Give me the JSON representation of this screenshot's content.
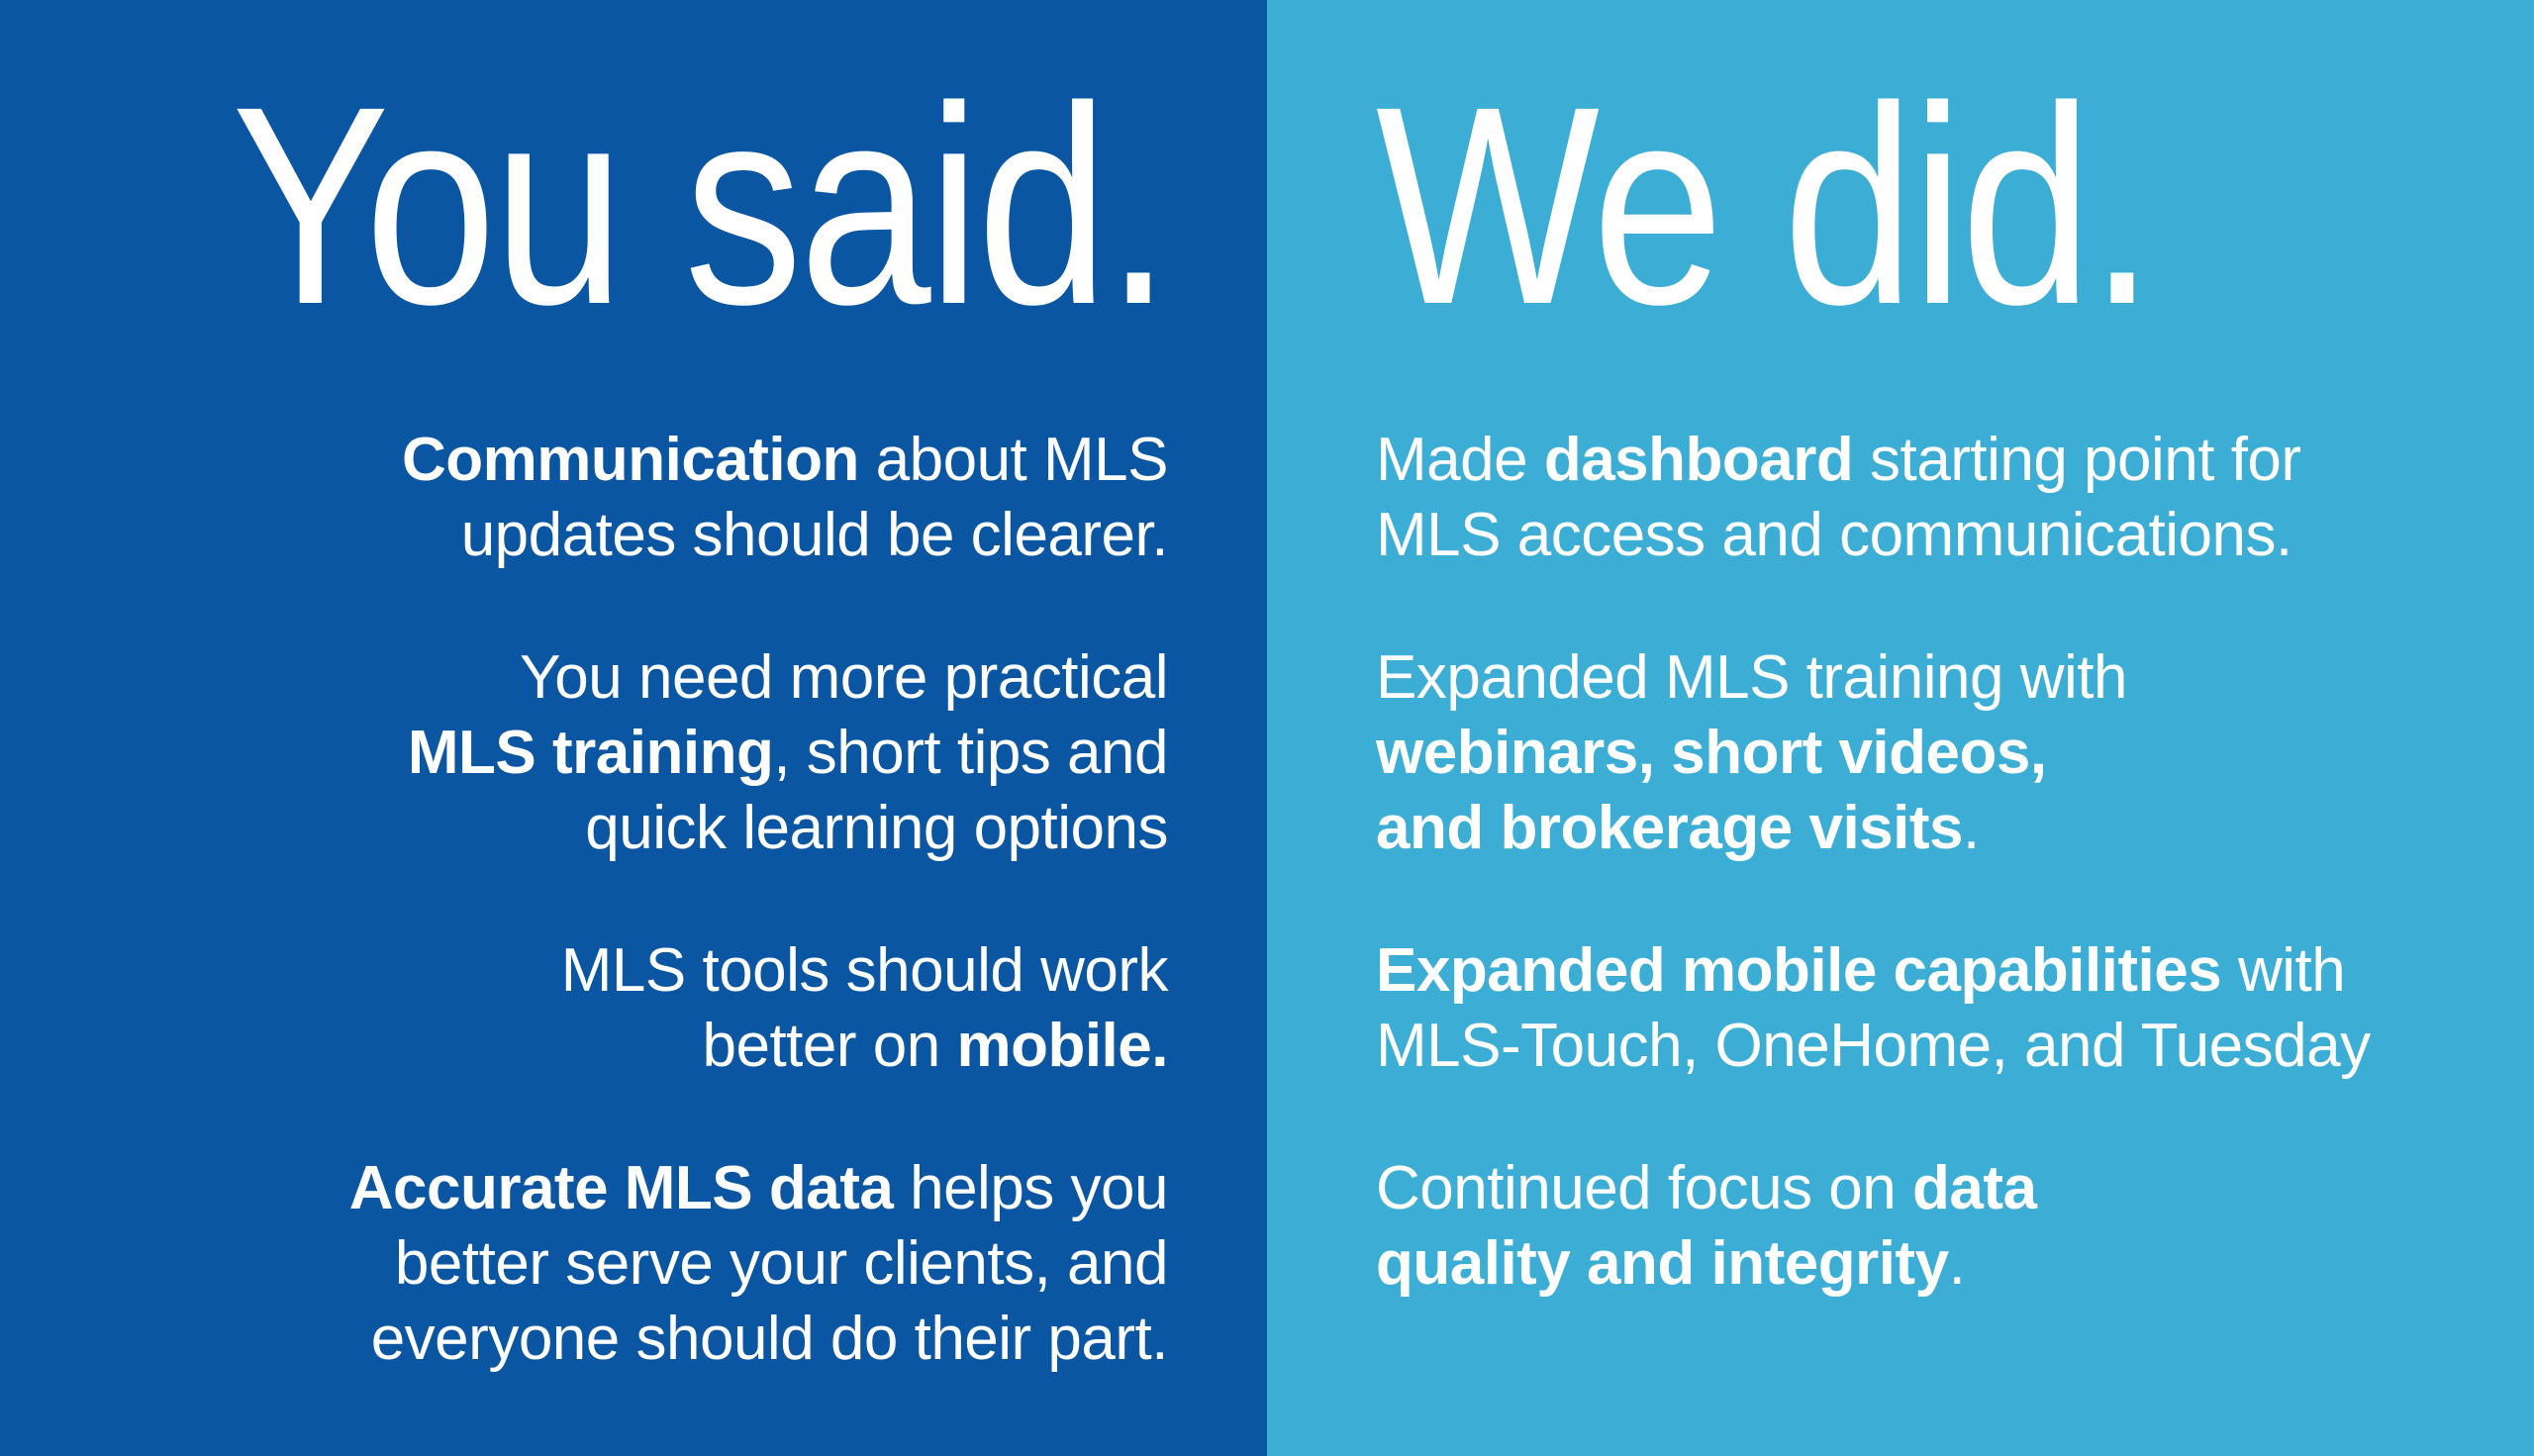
{
  "page": {
    "left_background": "#0a56a3",
    "right_background": "#3caed6",
    "text_color": "#ffffff"
  },
  "left_panel": {
    "title": "You said.",
    "paragraphs": [
      {
        "lines": [
          {
            "segs": [
              {
                "t": "Communication",
                "b": true
              },
              {
                "t": " about MLS",
                "b": false
              }
            ]
          },
          {
            "segs": [
              {
                "t": "updates should be clearer.",
                "b": false
              }
            ]
          }
        ]
      },
      {
        "lines": [
          {
            "segs": [
              {
                "t": "You need more practical",
                "b": false
              }
            ]
          },
          {
            "segs": [
              {
                "t": "MLS training",
                "b": true
              },
              {
                "t": ", short tips and",
                "b": false
              }
            ]
          },
          {
            "segs": [
              {
                "t": "quick learning options",
                "b": false
              }
            ]
          }
        ]
      },
      {
        "lines": [
          {
            "segs": [
              {
                "t": "MLS tools should work",
                "b": false
              }
            ]
          },
          {
            "segs": [
              {
                "t": "better on ",
                "b": false
              },
              {
                "t": "mobile",
                "b": true
              },
              {
                "t": ".",
                "b": true
              }
            ]
          }
        ]
      },
      {
        "lines": [
          {
            "segs": [
              {
                "t": "Accurate MLS data",
                "b": true
              },
              {
                "t": " helps you",
                "b": false
              }
            ]
          },
          {
            "segs": [
              {
                "t": "better serve your clients, and",
                "b": false
              }
            ]
          },
          {
            "segs": [
              {
                "t": "everyone should do their part.",
                "b": false
              }
            ]
          }
        ]
      }
    ]
  },
  "right_panel": {
    "title": "We did.",
    "paragraphs": [
      {
        "lines": [
          {
            "segs": [
              {
                "t": "Made ",
                "b": false
              },
              {
                "t": "dashboard",
                "b": true
              },
              {
                "t": " starting point for",
                "b": false
              }
            ]
          },
          {
            "segs": [
              {
                "t": "MLS access and communications.",
                "b": false
              }
            ]
          }
        ]
      },
      {
        "lines": [
          {
            "segs": [
              {
                "t": "Expanded MLS training with",
                "b": false
              }
            ]
          },
          {
            "segs": [
              {
                "t": "webinars, short videos,",
                "b": true
              }
            ]
          },
          {
            "segs": [
              {
                "t": "and brokerage visits",
                "b": true
              },
              {
                "t": ".",
                "b": false
              }
            ]
          }
        ]
      },
      {
        "lines": [
          {
            "segs": [
              {
                "t": "Expanded mobile capabilities",
                "b": true
              },
              {
                "t": " with",
                "b": false
              }
            ]
          },
          {
            "segs": [
              {
                "t": "MLS-Touch, OneHome, and Tuesday",
                "b": false
              }
            ]
          }
        ]
      },
      {
        "lines": [
          {
            "segs": [
              {
                "t": "Continued focus on ",
                "b": false
              },
              {
                "t": "data",
                "b": true
              }
            ]
          },
          {
            "segs": [
              {
                "t": "quality and integrity",
                "b": true
              },
              {
                "t": ".",
                "b": false
              }
            ]
          }
        ]
      }
    ]
  }
}
